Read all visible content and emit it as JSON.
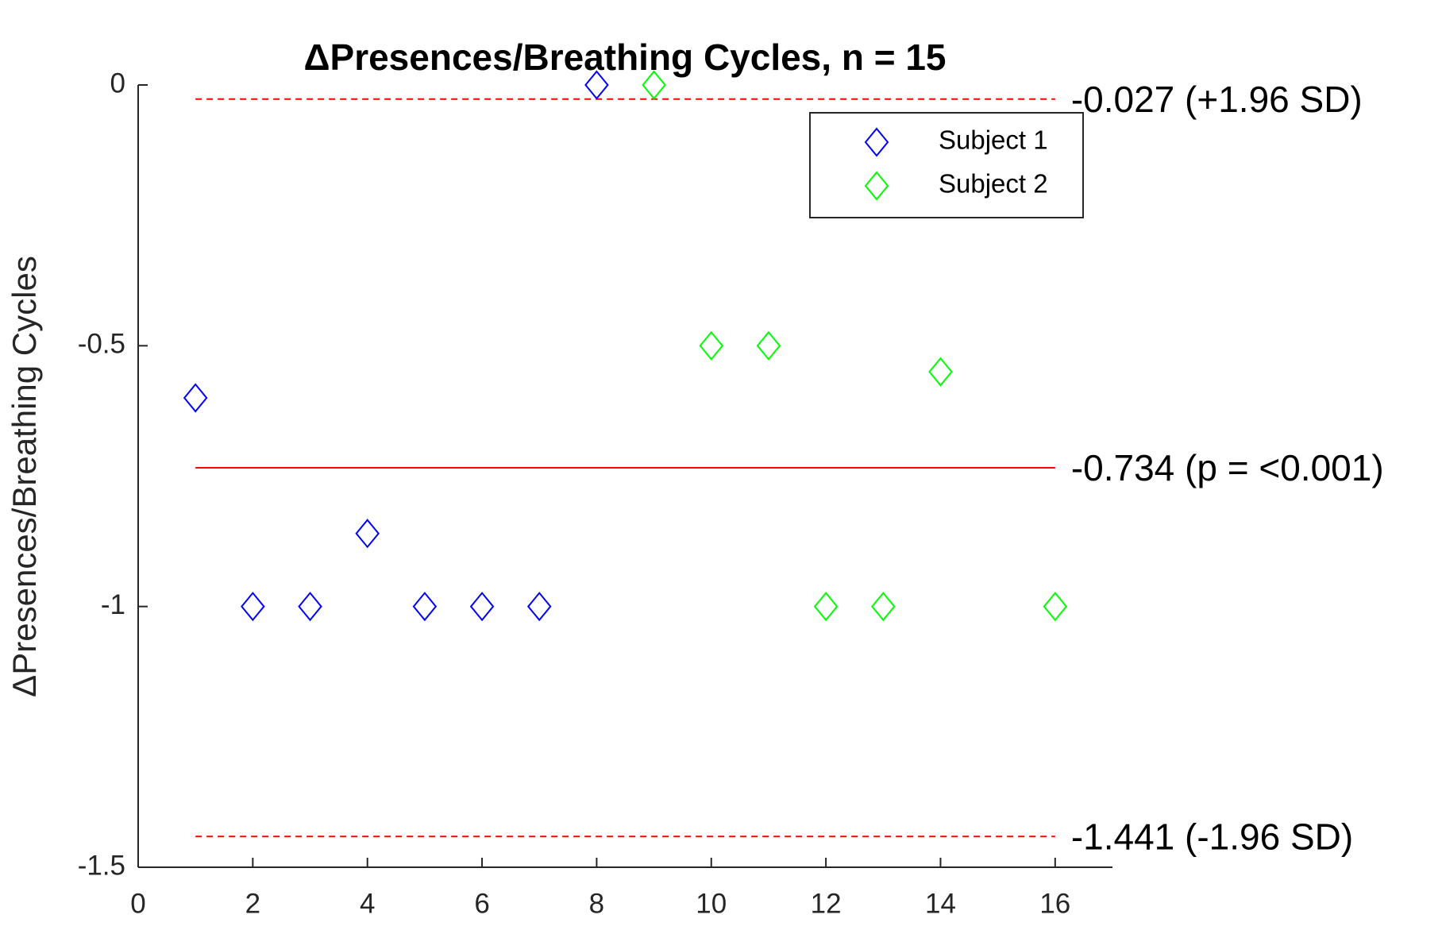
{
  "chart_data": {
    "type": "scatter",
    "title": "ΔPresences/Breathing Cycles, n = 15",
    "y_label": "ΔPresences/Breathing Cycles",
    "xlim": [
      0,
      17
    ],
    "ylim": [
      -1.5,
      0
    ],
    "xticks": [
      0,
      2,
      4,
      6,
      8,
      10,
      12,
      14,
      16
    ],
    "yticks": [
      -1.5,
      -1,
      -0.5,
      0
    ],
    "legend": "upper right",
    "series": [
      {
        "name": "Subject 1",
        "color": "#0000ff",
        "marker": "diamond",
        "x": [
          1,
          2,
          3,
          4,
          5,
          6,
          7,
          8
        ],
        "values": [
          -0.6,
          -1,
          -1,
          -0.86,
          -1,
          -1,
          -1,
          0
        ]
      },
      {
        "name": "Subject 2",
        "color": "#00ff00",
        "marker": "diamond",
        "x": [
          9,
          10,
          11,
          12,
          13,
          14,
          16
        ],
        "values": [
          0,
          -0.5,
          -0.5,
          -1,
          -1,
          -0.55,
          -1
        ]
      }
    ],
    "reference_lines": [
      {
        "value": -0.027,
        "label": "-0.027 (+1.96 SD)",
        "style": "dashed",
        "color": "#ff0000"
      },
      {
        "value": -0.734,
        "label": "-0.734 (p = <0.001)",
        "style": "solid",
        "color": "#ff0000"
      },
      {
        "value": -1.441,
        "label": "-1.441 (-1.96 SD)",
        "style": "dashed",
        "color": "#ff0000"
      }
    ]
  }
}
